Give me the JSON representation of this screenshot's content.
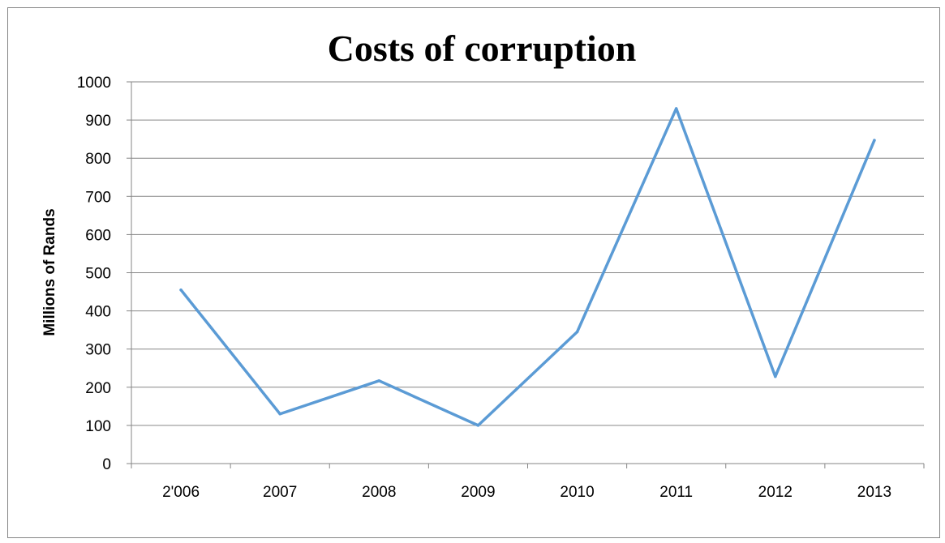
{
  "chart_data": {
    "type": "line",
    "title": "Costs of corruption",
    "xlabel": "",
    "ylabel": "Millions of Rands",
    "categories": [
      "2'006",
      "2007",
      "2008",
      "2009",
      "2010",
      "2011",
      "2012",
      "2013"
    ],
    "series": [
      {
        "values": [
          455,
          130,
          217,
          100,
          345,
          930,
          228,
          847
        ]
      }
    ],
    "ylim": [
      0,
      1000
    ],
    "yticks": [
      0,
      100,
      200,
      300,
      400,
      500,
      600,
      700,
      800,
      900,
      1000
    ],
    "grid": true,
    "legend": "none",
    "colors": {
      "line": "#5B9BD5",
      "grid": "#868686",
      "frame": "#858585"
    }
  }
}
